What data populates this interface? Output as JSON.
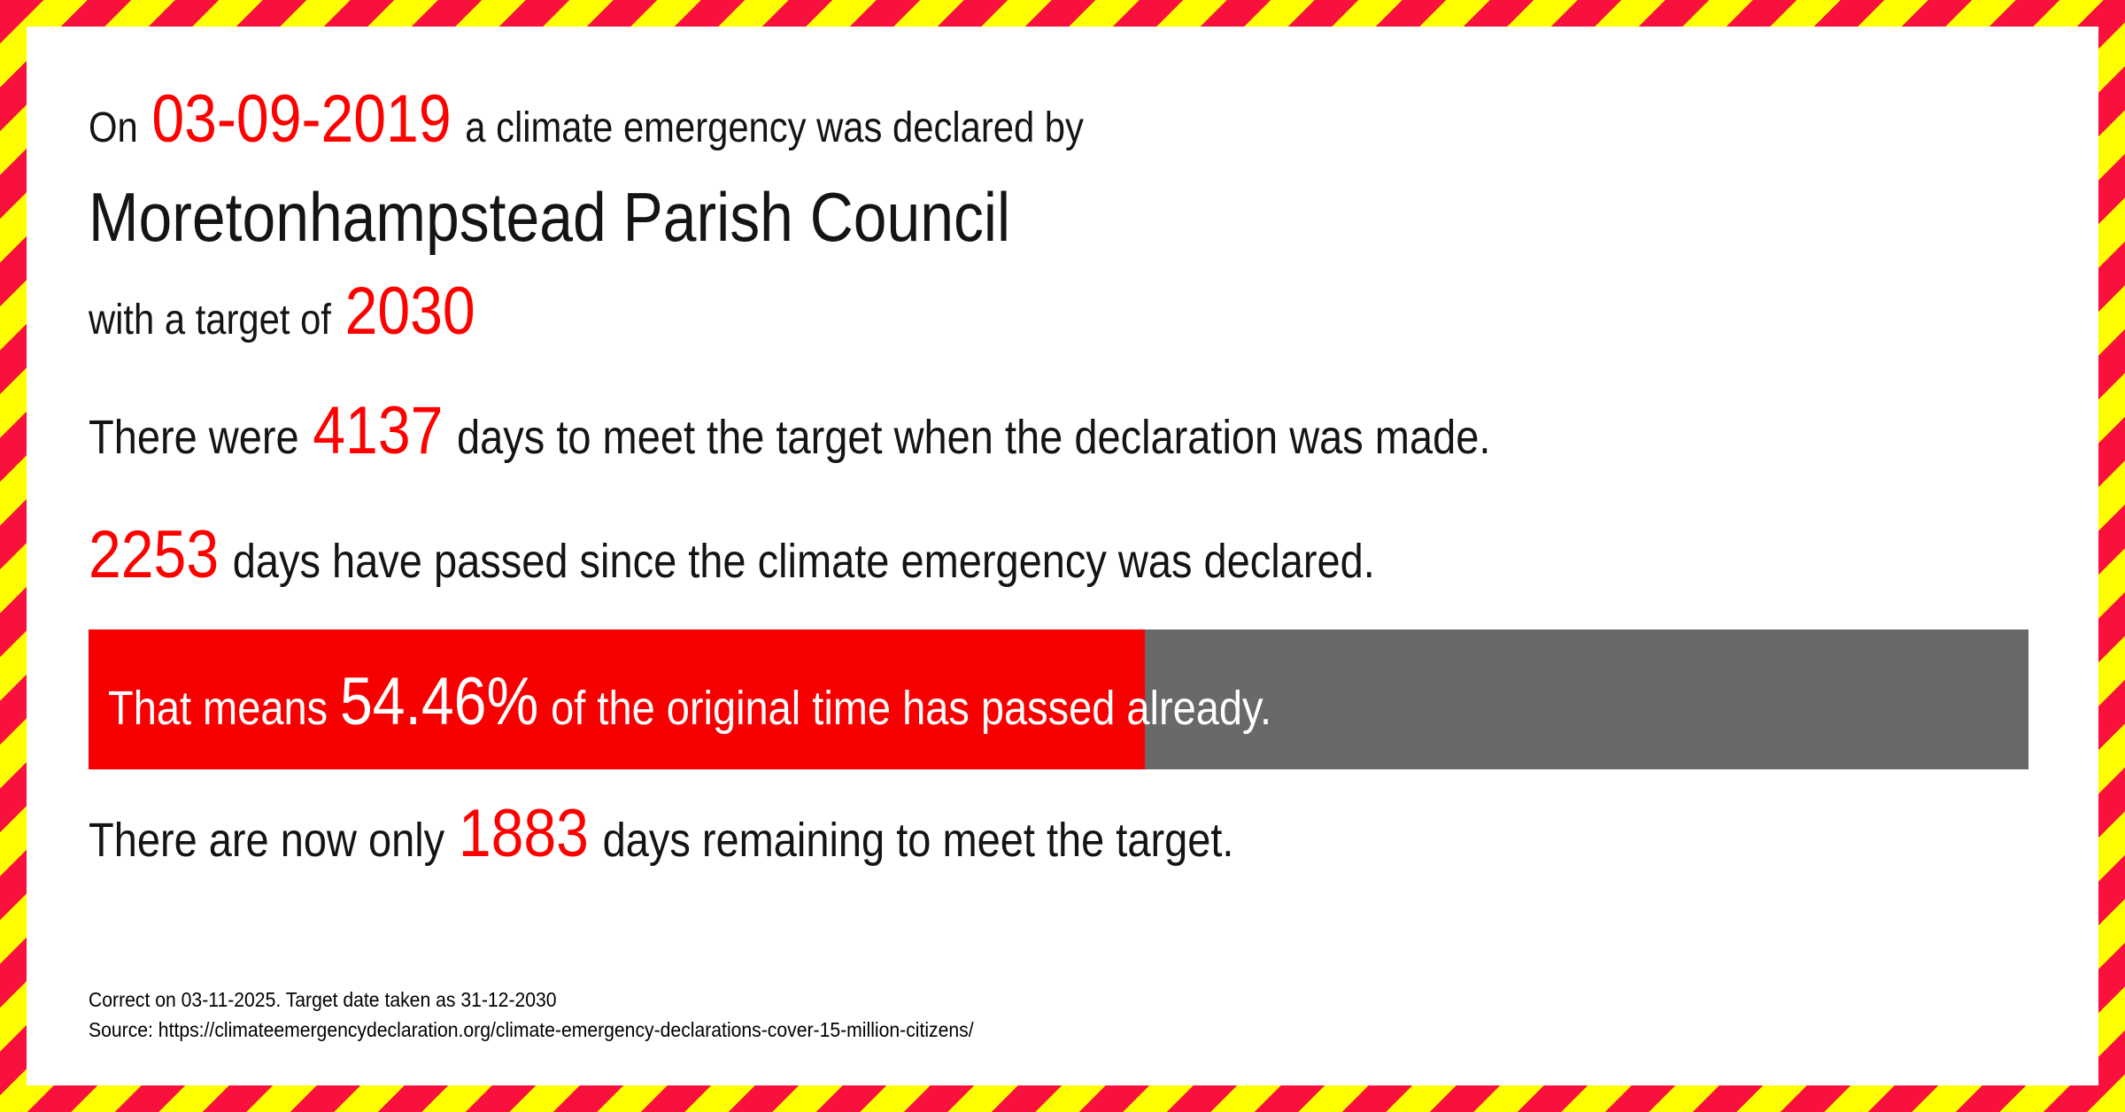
{
  "header": {
    "prefix": "On",
    "date": "03-09-2019",
    "suffix": "a climate emergency was declared by",
    "council": "Moretonhampstead Parish Council",
    "target_prefix": "with a target of",
    "target_year": "2030"
  },
  "stats": {
    "days_total": {
      "prefix": "There were",
      "value": "4137",
      "suffix": "days to meet the target when the declaration was made."
    },
    "days_passed": {
      "value": "2253",
      "suffix": "days have passed since the climate emergency was declared."
    },
    "days_remaining": {
      "prefix": "There are now only",
      "value": "1883",
      "suffix": "days remaining to meet the target."
    }
  },
  "progress": {
    "prefix": "That means",
    "percent": "54.46%",
    "percent_value": 54.46,
    "suffix": "of the original time has passed already."
  },
  "footer": {
    "correct_line": "Correct on 03-11-2025. Target date taken as 31-12-2030",
    "source_line": "Source: https://climateemergencydeclaration.org/climate-emergency-declarations-cover-15-million-citizens/"
  },
  "colors": {
    "accent_red": "#fe0000",
    "bar_red": "#f80000",
    "bar_gray": "#696969",
    "border_red": "#f9113d",
    "border_yellow": "#ffff00",
    "text_black": "#141414",
    "bar_text_white": "#ffffff"
  }
}
